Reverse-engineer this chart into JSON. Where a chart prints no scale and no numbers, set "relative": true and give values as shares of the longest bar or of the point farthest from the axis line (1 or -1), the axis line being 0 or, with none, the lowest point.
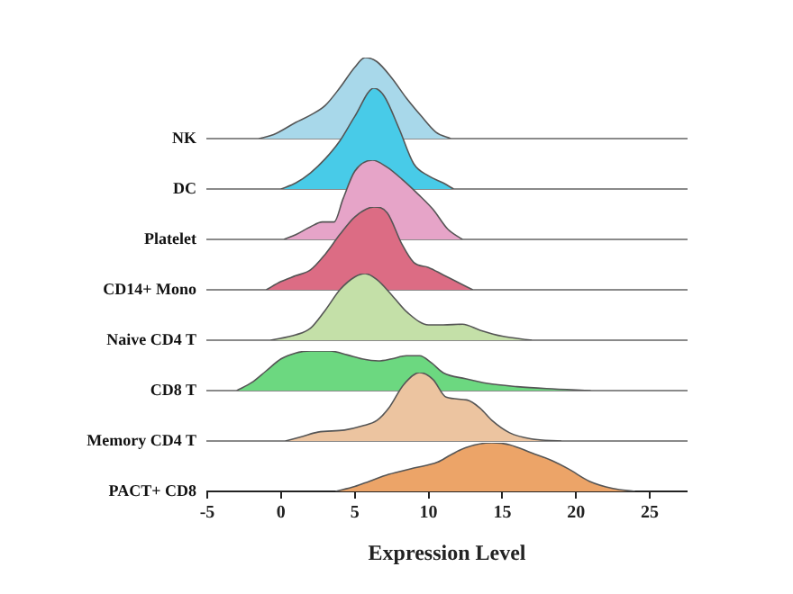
{
  "chart_data": [
    {
      "type": "area",
      "relative": true,
      "ylabel": "NK",
      "xlim": [
        -5,
        27.5
      ],
      "xticks": [
        -5,
        0,
        5,
        10,
        15,
        20,
        25
      ],
      "tick_labels": false,
      "series": [
        {
          "color": "#a8d8ea",
          "x": [
            -1.5,
            -0.5,
            1,
            2,
            3,
            4,
            5,
            5.7,
            6.5,
            7.5,
            8.5,
            9.5,
            10.5,
            11.5
          ],
          "values": [
            0,
            0.05,
            0.2,
            0.29,
            0.41,
            0.63,
            0.88,
            1,
            0.95,
            0.75,
            0.5,
            0.28,
            0.08,
            0
          ]
        }
      ]
    },
    {
      "type": "area",
      "relative": true,
      "ylabel": "DC",
      "xlim": [
        -5,
        27.5
      ],
      "xticks": [
        -5,
        0,
        5,
        10,
        15,
        20,
        25
      ],
      "tick_labels": false,
      "series": [
        {
          "color": "#48cbe8",
          "x": [
            0,
            1,
            2,
            3,
            4,
            5,
            6.3,
            7,
            8,
            9,
            10,
            11,
            11.7
          ],
          "values": [
            0,
            0.06,
            0.16,
            0.3,
            0.48,
            0.72,
            1,
            0.92,
            0.6,
            0.25,
            0.13,
            0.06,
            0
          ]
        }
      ]
    },
    {
      "type": "area",
      "relative": true,
      "ylabel": "Platelet",
      "xlim": [
        -5,
        27.5
      ],
      "xticks": [
        -5,
        0,
        5,
        10,
        15,
        20,
        25
      ],
      "tick_labels": false,
      "series": [
        {
          "color": "#e6a4c8",
          "x": [
            0.2,
            1,
            2,
            2.8,
            3.6,
            4.2,
            5,
            6.2,
            7.2,
            8.2,
            9.3,
            10.3,
            11.3,
            12.3
          ],
          "values": [
            0,
            0.06,
            0.16,
            0.22,
            0.22,
            0.51,
            0.86,
            1,
            0.91,
            0.76,
            0.57,
            0.38,
            0.13,
            0
          ]
        }
      ]
    },
    {
      "type": "area",
      "relative": true,
      "ylabel": "CD14+ Mono",
      "xlim": [
        -5,
        27.5
      ],
      "xticks": [
        -5,
        0,
        5,
        10,
        15,
        20,
        25
      ],
      "tick_labels": false,
      "series": [
        {
          "color": "#dc6c84",
          "x": [
            -1,
            0,
            1,
            2,
            3,
            4,
            5,
            6.3,
            7.2,
            8.2,
            9,
            10,
            11,
            12,
            13
          ],
          "values": [
            0,
            0.1,
            0.17,
            0.24,
            0.43,
            0.67,
            0.88,
            1,
            0.93,
            0.55,
            0.33,
            0.27,
            0.18,
            0.09,
            0
          ]
        }
      ]
    },
    {
      "type": "area",
      "relative": true,
      "ylabel": "Naive CD4 T",
      "xlim": [
        -5,
        27.5
      ],
      "xticks": [
        -5,
        0,
        5,
        10,
        15,
        20,
        25
      ],
      "tick_labels": false,
      "series": [
        {
          "color": "#c4e0a8",
          "x": [
            -0.7,
            1,
            2,
            3,
            4,
            5,
            5.7,
            6.5,
            7.5,
            8.6,
            10,
            11,
            12.3,
            13.5,
            15,
            17
          ],
          "values": [
            0,
            0.08,
            0.18,
            0.45,
            0.76,
            0.95,
            1,
            0.91,
            0.68,
            0.41,
            0.23,
            0.23,
            0.24,
            0.15,
            0.06,
            0
          ]
        }
      ]
    },
    {
      "type": "area",
      "relative": true,
      "ylabel": "CD8 T",
      "xlim": [
        -5,
        27.5
      ],
      "xticks": [
        -5,
        0,
        5,
        10,
        15,
        20,
        25
      ],
      "tick_labels": false,
      "series": [
        {
          "color": "#6cd880",
          "x": [
            -3,
            -2,
            -1,
            0,
            1,
            2,
            3.3,
            4.5,
            5.5,
            6.6,
            7.5,
            8.5,
            9.4,
            10.2,
            11,
            12.5,
            14,
            16,
            18,
            21
          ],
          "values": [
            0,
            0.2,
            0.5,
            0.8,
            0.95,
            1,
            1,
            0.9,
            0.8,
            0.75,
            0.8,
            0.88,
            0.88,
            0.7,
            0.45,
            0.3,
            0.18,
            0.1,
            0.05,
            0
          ]
        }
      ]
    },
    {
      "type": "area",
      "relative": true,
      "ylabel": "Memory CD4 T",
      "xlim": [
        -5,
        27.5
      ],
      "xticks": [
        -5,
        0,
        5,
        10,
        15,
        20,
        25
      ],
      "tick_labels": false,
      "series": [
        {
          "color": "#ecc4a0",
          "x": [
            0.3,
            1.5,
            2.5,
            4.3,
            5.5,
            6.5,
            7.3,
            8.3,
            9.4,
            10.3,
            11.2,
            12.6,
            13.5,
            14.3,
            15.5,
            17,
            19
          ],
          "values": [
            0,
            0.07,
            0.13,
            0.16,
            0.22,
            0.3,
            0.48,
            0.82,
            1,
            0.9,
            0.64,
            0.6,
            0.48,
            0.3,
            0.12,
            0.03,
            0
          ]
        }
      ]
    },
    {
      "type": "area",
      "relative": true,
      "ylabel": "PACT+ CD8",
      "xlabel": "Expression Level",
      "xlim": [
        -5,
        27.5
      ],
      "xticks": [
        -5,
        0,
        5,
        10,
        15,
        20,
        25
      ],
      "series": [
        {
          "color": "#eca468",
          "x": [
            3.7,
            5,
            6,
            7.3,
            9,
            10.6,
            11.5,
            12.5,
            14.3,
            15.5,
            17,
            18.4,
            19.5,
            20.9,
            22.5,
            24
          ],
          "values": [
            0,
            0.1,
            0.21,
            0.35,
            0.48,
            0.6,
            0.75,
            0.9,
            1,
            0.96,
            0.79,
            0.63,
            0.46,
            0.21,
            0.06,
            0
          ]
        }
      ]
    }
  ]
}
